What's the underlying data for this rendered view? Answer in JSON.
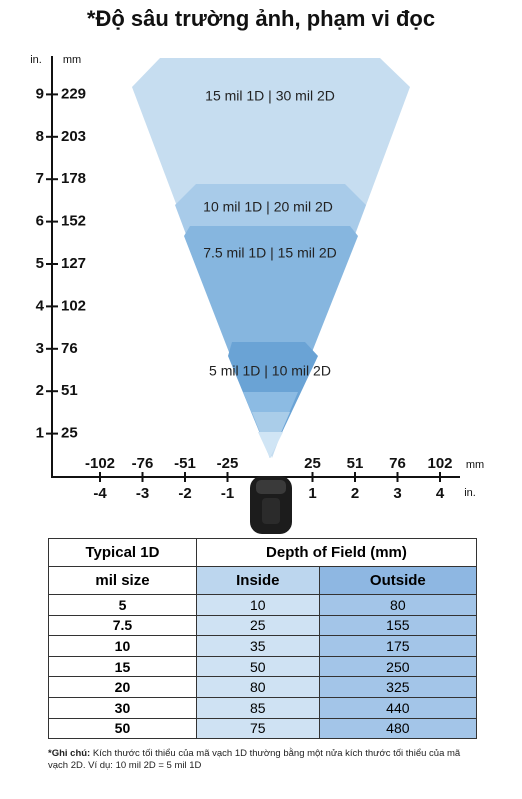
{
  "title": "*Độ sâu trường ảnh, phạm vi đọc",
  "diagram": {
    "y_axis": {
      "unit_in": "in.",
      "unit_mm": "mm",
      "ticks_in": [
        9,
        8,
        7,
        6,
        5,
        4,
        3,
        2,
        1
      ],
      "ticks_mm": [
        229,
        203,
        178,
        152,
        127,
        102,
        76,
        51,
        25
      ]
    },
    "x_axis": {
      "unit_mm": "mm",
      "unit_in": "in.",
      "ticks_mm": [
        -102,
        -76,
        -51,
        -25,
        25,
        51,
        76,
        102
      ],
      "ticks_in": [
        -4,
        -3,
        -2,
        -1,
        1,
        2,
        3,
        4
      ]
    },
    "zones": [
      {
        "label": "15 mil 1D | 30 mil 2D"
      },
      {
        "label": "10 mil 1D | 20 mil 2D"
      },
      {
        "label": "7.5 mil 1D | 15 mil 2D"
      },
      {
        "label": "5 mil 1D | 10 mil 2D"
      }
    ]
  },
  "table": {
    "header": [
      "Typical 1D",
      "Depth of Field (mm)"
    ],
    "subheader": [
      "mil size",
      "Inside",
      "Outside"
    ],
    "rows": [
      [
        "5",
        10,
        80
      ],
      [
        "7.5",
        25,
        155
      ],
      [
        "10",
        35,
        175
      ],
      [
        "15",
        50,
        250
      ],
      [
        "20",
        80,
        325
      ],
      [
        "30",
        85,
        440
      ],
      [
        "50",
        75,
        480
      ]
    ]
  },
  "note": {
    "label": "*Ghi chú:",
    "text": " Kích thước tối thiểu của mã vạch 1D thường bằng một nửa kích thước tối thiểu của mã vạch 2D. Ví dụ: 10 mil 2D = 5 mil 1D"
  }
}
